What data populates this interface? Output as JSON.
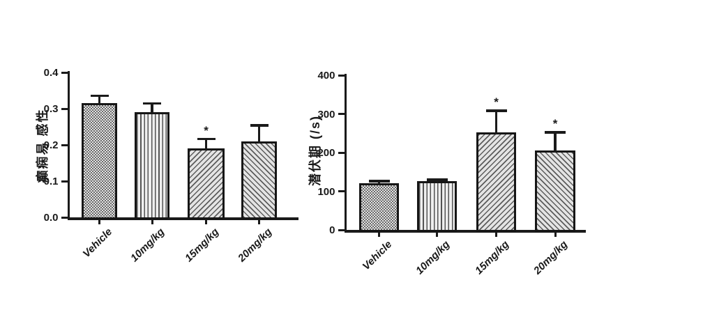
{
  "figure": {
    "background_color": "#ffffff",
    "ink_color": "#1a1a1a",
    "description": "Two-panel bar figure comparing Vehicle and three drug doses"
  },
  "chart_data": [
    {
      "type": "bar",
      "title": "",
      "ylabel": "癫痫易 感性",
      "xlabel": "",
      "categories": [
        "Vehicle",
        "10mg/kg",
        "15mg/kg",
        "20mg/kg"
      ],
      "values": [
        0.315,
        0.29,
        0.19,
        0.21
      ],
      "errors_up": [
        0.021,
        0.024,
        0.026,
        0.044
      ],
      "significance": [
        "",
        "",
        "*",
        ""
      ],
      "ylim": [
        0,
        0.4
      ],
      "yticks": [
        0,
        0.1,
        0.2,
        0.3,
        0.4
      ],
      "ytick_labels": [
        "0.0",
        "0.1",
        "0.2",
        "0.3",
        "0.4"
      ],
      "bar_patterns": [
        "checkerboard",
        "vertical-lines",
        "diagonal-up",
        "diagonal-down"
      ],
      "grid": false,
      "legend_position": "none"
    },
    {
      "type": "bar",
      "title": "",
      "ylabel": "潜伏期  (/s)",
      "xlabel": "",
      "categories": [
        "Vehicle",
        "10mg/kg",
        "15mg/kg",
        "20mg/kg"
      ],
      "values": [
        120,
        126,
        253,
        206
      ],
      "errors_up": [
        6,
        4,
        55,
        46
      ],
      "significance": [
        "",
        "",
        "*",
        "*"
      ],
      "ylim": [
        0,
        400
      ],
      "yticks": [
        0,
        100,
        200,
        300,
        400
      ],
      "ytick_labels": [
        "0",
        "100",
        "200",
        "300",
        "400"
      ],
      "bar_patterns": [
        "checkerboard",
        "vertical-lines",
        "diagonal-up",
        "diagonal-down"
      ],
      "grid": false,
      "legend_position": "none"
    }
  ]
}
